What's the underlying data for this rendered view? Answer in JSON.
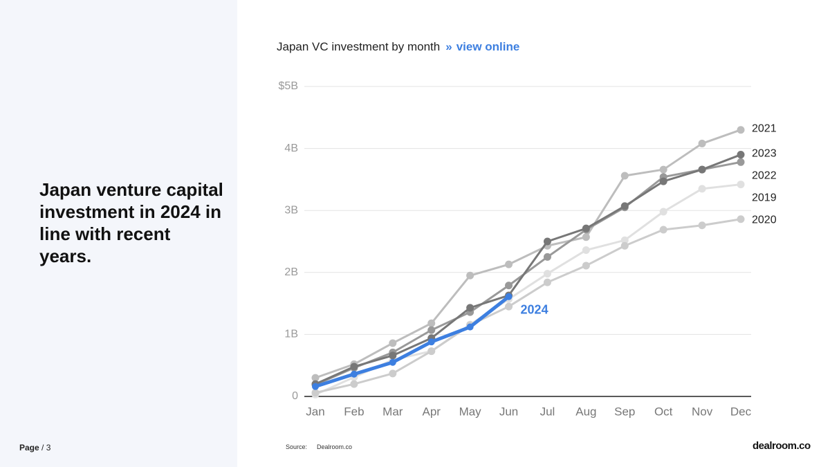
{
  "title": "Japan venture capital investment in 2024 in line with recent years.",
  "page": {
    "label": "Page",
    "number": "/ 3"
  },
  "source": {
    "label": "Source:",
    "value": "Dealroom.co"
  },
  "logo": "dealroom.co",
  "chart_data": {
    "type": "line",
    "title": "Japan VC investment by month",
    "link_separator": "»",
    "link": "view online",
    "categories": [
      "Jan",
      "Feb",
      "Mar",
      "Apr",
      "May",
      "Jun",
      "Jul",
      "Aug",
      "Sep",
      "Oct",
      "Nov",
      "Dec"
    ],
    "ylim": [
      0,
      5
    ],
    "yticks": [
      0,
      {
        "value": 1,
        "label": "1B"
      },
      {
        "value": 2,
        "label": "2B"
      },
      {
        "value": 3,
        "label": "3B"
      },
      {
        "value": 4,
        "label": "4B"
      },
      {
        "value": 5,
        "label": "$5B"
      }
    ],
    "grid": true,
    "series": [
      {
        "name": "2019",
        "color": "#e0e0e0",
        "values": [
          0.03,
          0.31,
          0.59,
          0.73,
          1.16,
          1.57,
          1.98,
          2.36,
          2.52,
          2.98,
          3.35,
          3.42
        ]
      },
      {
        "name": "2020",
        "color": "#cccccc",
        "values": [
          0.06,
          0.2,
          0.37,
          0.73,
          1.15,
          1.45,
          1.84,
          2.11,
          2.43,
          2.69,
          2.76,
          2.86
        ]
      },
      {
        "name": "2021",
        "color": "#bdbdbd",
        "values": [
          0.3,
          0.52,
          0.86,
          1.18,
          1.95,
          2.13,
          2.43,
          2.57,
          3.56,
          3.66,
          4.08,
          4.3
        ]
      },
      {
        "name": "2022",
        "color": "#999999",
        "values": [
          0.19,
          0.46,
          0.71,
          1.07,
          1.36,
          1.79,
          2.25,
          2.69,
          3.05,
          3.54,
          3.66,
          3.78
        ]
      },
      {
        "name": "2023",
        "color": "#777777",
        "values": [
          0.2,
          0.48,
          0.66,
          0.94,
          1.43,
          1.63,
          2.5,
          2.71,
          3.07,
          3.47,
          3.66,
          3.9
        ]
      },
      {
        "name": "2024",
        "color": "#3d7fe0",
        "values": [
          0.16,
          0.36,
          0.55,
          0.88,
          1.12,
          1.61,
          null,
          null,
          null,
          null,
          null,
          null
        ]
      }
    ]
  }
}
